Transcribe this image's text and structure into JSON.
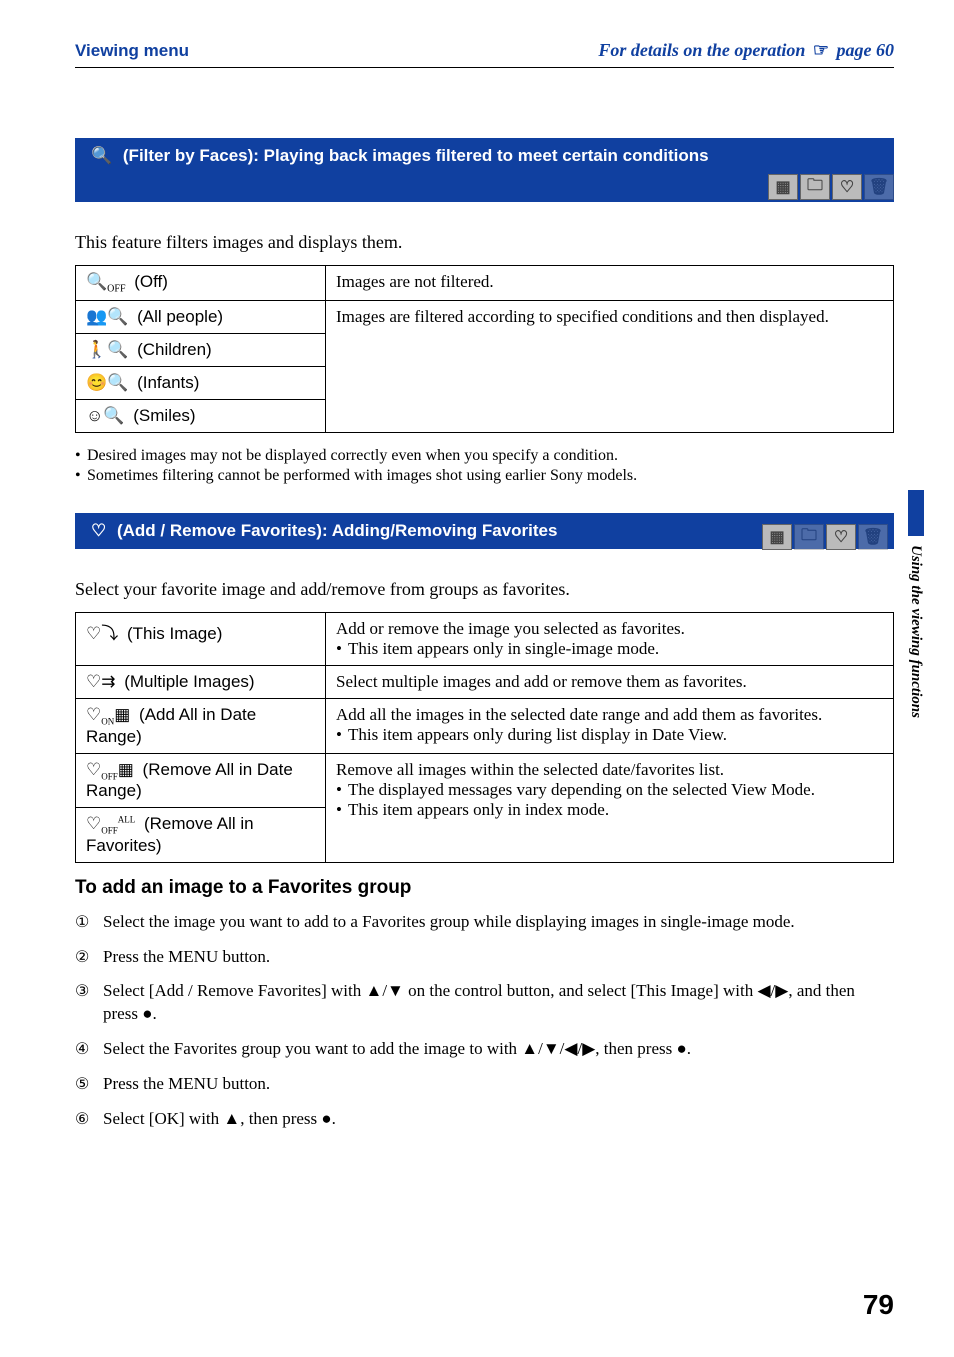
{
  "header": {
    "left": "Viewing menu",
    "right_prefix": "For details on the operation ",
    "right_suffix": " page 60"
  },
  "side_label": "Using the viewing functions",
  "page_number": "79",
  "section1": {
    "icon": "🔍",
    "title": " (Filter by Faces): Playing back images filtered to meet certain conditions",
    "intro": "This feature filters images and displays them.",
    "rows": {
      "off_label": " (Off)",
      "off_desc": "Images are not filtered.",
      "all_label": " (All people)",
      "children_label": " (Children)",
      "infants_label": " (Infants)",
      "smiles_label": " (Smiles)",
      "filtered_desc": "Images are filtered according to specified conditions and then displayed."
    },
    "notes": {
      "n1": "Desired images may not be displayed correctly even when you specify a condition.",
      "n2": "Sometimes filtering cannot be performed with images shot using earlier Sony models."
    }
  },
  "section2": {
    "icon": "♡",
    "title": " (Add / Remove Favorites): Adding/Removing Favorites",
    "intro": "Select your favorite image and add/remove from groups as favorites.",
    "rows": {
      "this_label": " (This Image)",
      "this_desc": "Add or remove the image you selected as favorites.",
      "this_note": "This item appears only in single-image mode.",
      "multi_label": " (Multiple Images)",
      "multi_desc": "Select multiple images and add or remove them as favorites.",
      "addall_label": " (Add All in Date Range)",
      "addall_desc": "Add all the images in the selected date range and add them as favorites.",
      "addall_note": "This item appears only during list display in Date View.",
      "remdate_label": " (Remove All in Date Range)",
      "remfav_label": " (Remove All in Favorites)",
      "rem_desc": "Remove all images within the selected date/favorites list.",
      "rem_note1": "The displayed messages vary depending on the selected View Mode.",
      "rem_note2": "This item appears only in index mode."
    }
  },
  "subheading": "To add an image to a Favorites group",
  "steps": {
    "s1": "Select the image you want to add to a Favorites group while displaying images in single-image mode.",
    "s2": "Press the MENU button.",
    "s3": "Select [Add / Remove Favorites] with ▲/▼ on the control button, and select [This Image] with ◀/▶, and then press ●.",
    "s4": "Select the Favorites group you want to add the image to with ▲/▼/◀/▶, then press ●.",
    "s5": "Press the MENU button.",
    "s6": "Select [OK] with ▲, then press ●."
  }
}
